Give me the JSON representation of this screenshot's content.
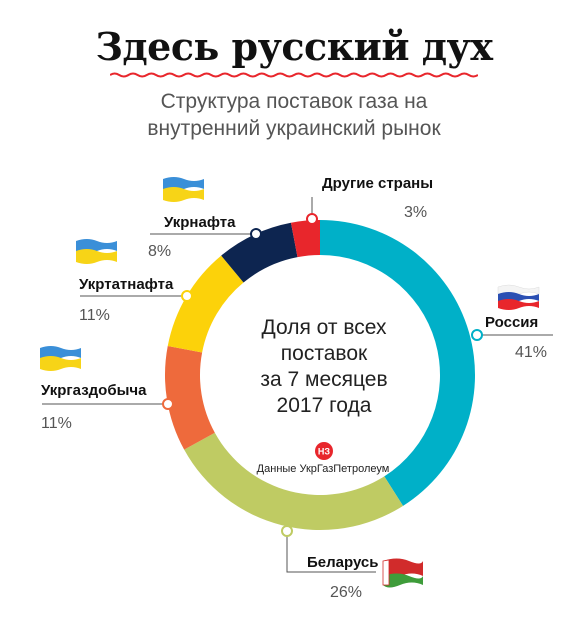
{
  "header": {
    "title": "Здесь русский дух",
    "subtitle_line1": "Структура поставок газа на",
    "subtitle_line2": "внутренний украинский рынок"
  },
  "center": {
    "line1": "Доля от всех",
    "line2": "поставок",
    "line3": "за 7 месяцев",
    "line4": "2017 года"
  },
  "source": {
    "logo": "НЗ",
    "text": "Данные УкрГазПетролеум"
  },
  "colors": {
    "russia": "#00b0c8",
    "belarus": "#bfcb63",
    "ukrgazdobycha": "#ee6a3c",
    "ukrtatnafta": "#fcd20a",
    "ukrnafta": "#0d2550",
    "other": "#e8262c",
    "logo": "#e8262c"
  },
  "chart_data": {
    "type": "pie",
    "style": "donut",
    "series": [
      {
        "name": "Россия",
        "value": 41,
        "label": "41%",
        "color": "#00b0c8",
        "flag": "russia-flag"
      },
      {
        "name": "Беларусь",
        "value": 26,
        "label": "26%",
        "color": "#bfcb63",
        "flag": "belarus-flag"
      },
      {
        "name": "Укргаздобыча",
        "value": 11,
        "label": "11%",
        "color": "#ee6a3c",
        "flag": "ukraine-flag"
      },
      {
        "name": "Укртатнафта",
        "value": 11,
        "label": "11%",
        "color": "#fcd20a",
        "flag": "ukraine-flag"
      },
      {
        "name": "Укрнафта",
        "value": 8,
        "label": "8%",
        "color": "#0d2550",
        "flag": "ukraine-flag"
      },
      {
        "name": "Другие страны",
        "value": 3,
        "label": "3%",
        "color": "#e8262c",
        "flag": ""
      }
    ]
  }
}
